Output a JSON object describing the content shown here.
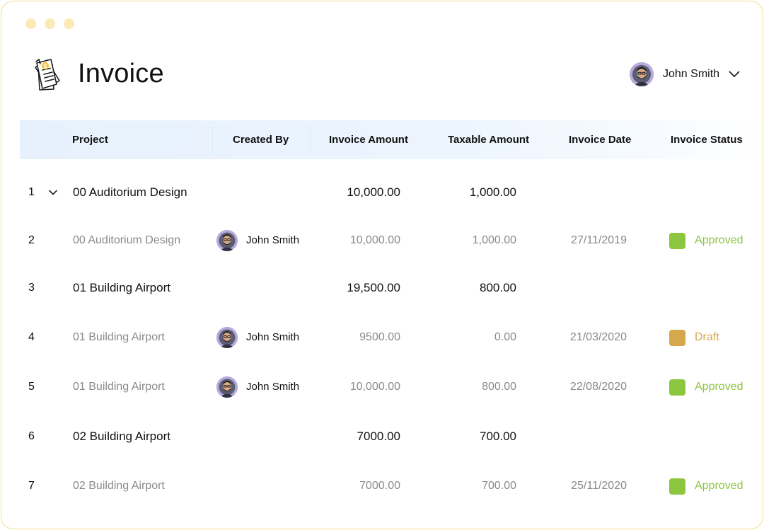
{
  "header": {
    "title": "Invoice",
    "app_icon": "invoice-document-icon"
  },
  "user": {
    "name": "John Smith",
    "menu_icon": "chevron-down-icon"
  },
  "table": {
    "columns": [
      "Project",
      "Created By",
      "Invoice Amount",
      "Taxable Amount",
      "Invoice Date",
      "Invoice Status"
    ],
    "rows": [
      {
        "index": "1",
        "project": "00 Auditorium Design",
        "created_by": "",
        "invoice_amount": "10,000.00",
        "taxable_amount": "1,000.00",
        "invoice_date": "",
        "status": "",
        "parent": true,
        "expanded": true
      },
      {
        "index": "2",
        "project": "00 Auditorium Design",
        "created_by": "John Smith",
        "invoice_amount": "10,000.00",
        "taxable_amount": "1,000.00",
        "invoice_date": "27/11/2019",
        "status": "Approved",
        "parent": false
      },
      {
        "index": "3",
        "project": "01 Building Airport",
        "created_by": "",
        "invoice_amount": "19,500.00",
        "taxable_amount": "800.00",
        "invoice_date": "",
        "status": "",
        "parent": true
      },
      {
        "index": "4",
        "project": "01 Building Airport",
        "created_by": "John Smith",
        "invoice_amount": "9500.00",
        "taxable_amount": "0.00",
        "invoice_date": "21/03/2020",
        "status": "Draft",
        "parent": false
      },
      {
        "index": "5",
        "project": "01 Building Airport",
        "created_by": "John Smith",
        "invoice_amount": "10,000.00",
        "taxable_amount": "800.00",
        "invoice_date": "22/08/2020",
        "status": "Approved",
        "parent": false
      },
      {
        "index": "6",
        "project": "02 Building Airport",
        "created_by": "",
        "invoice_amount": "7000.00",
        "taxable_amount": "700.00",
        "invoice_date": "",
        "status": "",
        "parent": true
      },
      {
        "index": "7",
        "project": "02 Building Airport",
        "created_by": "",
        "invoice_amount": "7000.00",
        "taxable_amount": "700.00",
        "invoice_date": "25/11/2020",
        "status": "Approved",
        "parent": false
      }
    ]
  },
  "status_colors": {
    "Approved": {
      "swatch": "#8cc63f",
      "text": "#8cc63f"
    },
    "Draft": {
      "swatch": "#d5a84c",
      "text": "#d5a84c"
    }
  },
  "colors": {
    "window_border": "#f2dc8c",
    "header_bg": "#e6f1fd",
    "avatar_bg": "#b7a9dc"
  }
}
